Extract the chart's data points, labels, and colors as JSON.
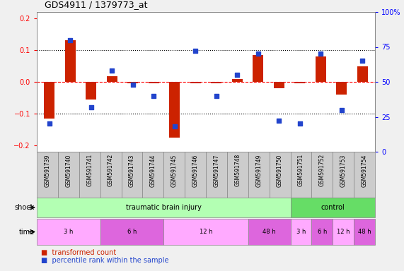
{
  "title": "GDS4911 / 1379773_at",
  "samples": [
    "GSM591739",
    "GSM591740",
    "GSM591741",
    "GSM591742",
    "GSM591743",
    "GSM591744",
    "GSM591745",
    "GSM591746",
    "GSM591747",
    "GSM591748",
    "GSM591749",
    "GSM591750",
    "GSM591751",
    "GSM591752",
    "GSM591753",
    "GSM591754"
  ],
  "red_values": [
    -0.115,
    0.13,
    -0.055,
    0.018,
    -0.005,
    -0.005,
    -0.175,
    -0.005,
    -0.005,
    0.01,
    0.085,
    -0.02,
    -0.005,
    0.08,
    -0.04,
    0.05
  ],
  "blue_values_pct": [
    20,
    80,
    32,
    58,
    48,
    40,
    18,
    72,
    40,
    55,
    70,
    22,
    20,
    70,
    30,
    65
  ],
  "ylim_left": [
    -0.22,
    0.22
  ],
  "ylim_right": [
    0,
    100
  ],
  "yticks_left": [
    -0.2,
    -0.1,
    0.0,
    0.1,
    0.2
  ],
  "yticks_right": [
    0,
    25,
    50,
    75,
    100
  ],
  "shock_groups": [
    {
      "label": "traumatic brain injury",
      "start": 0,
      "end": 12,
      "color": "#b3ffb3"
    },
    {
      "label": "control",
      "start": 12,
      "end": 16,
      "color": "#66dd66"
    }
  ],
  "time_groups": [
    {
      "label": "3 h",
      "start": 0,
      "end": 3,
      "color": "#ffaaff"
    },
    {
      "label": "6 h",
      "start": 3,
      "end": 6,
      "color": "#dd66dd"
    },
    {
      "label": "12 h",
      "start": 6,
      "end": 10,
      "color": "#ffaaff"
    },
    {
      "label": "48 h",
      "start": 10,
      "end": 12,
      "color": "#dd66dd"
    },
    {
      "label": "3 h",
      "start": 12,
      "end": 13,
      "color": "#ffaaff"
    },
    {
      "label": "6 h",
      "start": 13,
      "end": 14,
      "color": "#dd66dd"
    },
    {
      "label": "12 h",
      "start": 14,
      "end": 15,
      "color": "#ffaaff"
    },
    {
      "label": "48 h",
      "start": 15,
      "end": 16,
      "color": "#dd66dd"
    }
  ],
  "bar_color_red": "#cc2200",
  "bar_color_blue": "#2244cc",
  "legend_red": "transformed count",
  "legend_blue": "percentile rank within the sample",
  "bg_color": "#f0f0f0"
}
